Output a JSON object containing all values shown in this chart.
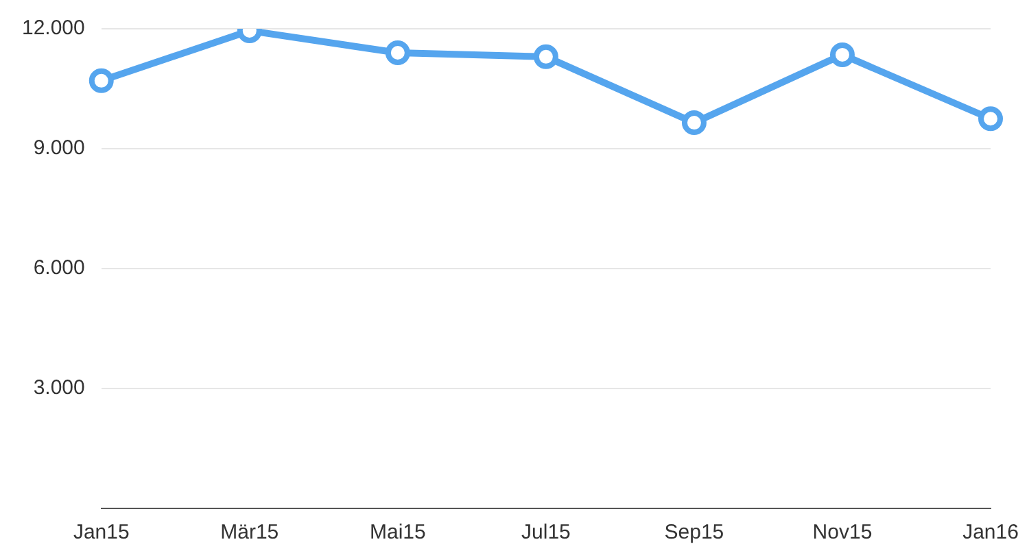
{
  "chart_data": {
    "type": "line",
    "categories": [
      "Jan15",
      "Mär15",
      "Mai15",
      "Jul15",
      "Sep15",
      "Nov15",
      "Jan16"
    ],
    "series": [
      {
        "color": "#55a5ee",
        "values": [
          10700,
          11950,
          11400,
          11300,
          9650,
          11350,
          9750
        ]
      }
    ],
    "ylim": [
      0,
      12000
    ],
    "yticks": [
      {
        "value": 3000,
        "label": "3.000"
      },
      {
        "value": 6000,
        "label": "6.000"
      },
      {
        "value": 9000,
        "label": "9.000"
      },
      {
        "value": 12000,
        "label": "12.000"
      }
    ],
    "grid": "y",
    "legend": false,
    "marker": "circle",
    "line_style": "solid"
  }
}
